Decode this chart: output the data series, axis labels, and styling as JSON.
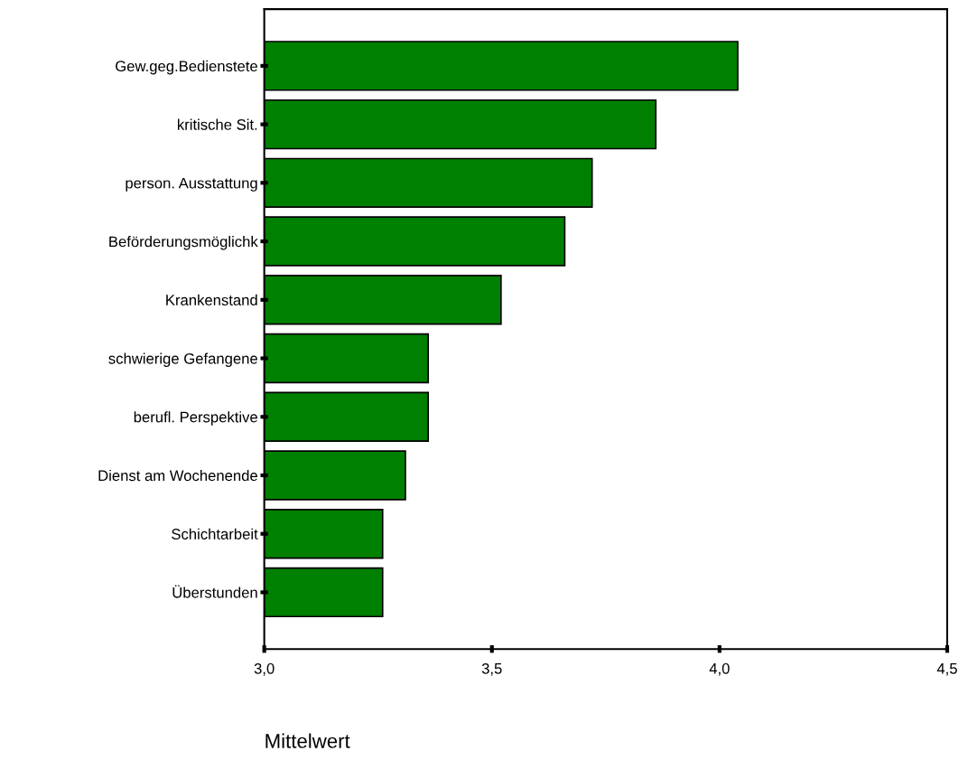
{
  "chart_data": {
    "type": "bar",
    "orientation": "horizontal",
    "xlabel": "Mittelwert",
    "categories": [
      "Gew.geg.Bedienstete",
      "kritische Sit.",
      "person. Ausstattung",
      "Beförderungsmöglichk",
      "Krankenstand",
      "schwierige Gefangene",
      "berufl. Perspektive",
      "Dienst am Wochenende",
      "Schichtarbeit",
      "Überstunden"
    ],
    "values": [
      4.04,
      3.86,
      3.72,
      3.66,
      3.52,
      3.36,
      3.36,
      3.31,
      3.26,
      3.26
    ],
    "color": "#008000",
    "xlim": [
      3.0,
      4.5
    ],
    "xticks": [
      {
        "value": 3.0,
        "label": "3,0"
      },
      {
        "value": 3.5,
        "label": "3,5"
      },
      {
        "value": 4.0,
        "label": "4,0"
      },
      {
        "value": 4.5,
        "label": "4,5"
      }
    ],
    "grid": false
  }
}
